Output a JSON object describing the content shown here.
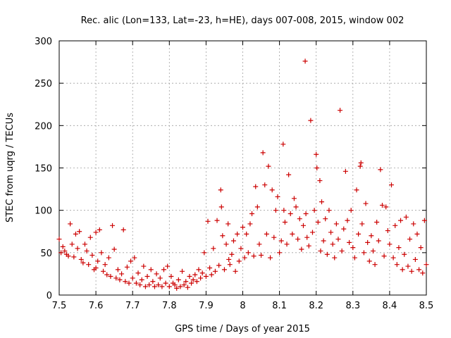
{
  "chart_data": {
    "type": "scatter",
    "title": "Rec. alic (Lon=133, Lat=-23, h=HE), days 007-008, 2015, window 002",
    "xlabel": "GPS time / Days of year 2015",
    "ylabel": "STEC from uqrg / TECUs",
    "xlim": [
      7.5,
      8.5
    ],
    "ylim": [
      0,
      300
    ],
    "x_ticks": [
      "7.5",
      "7.6",
      "7.7",
      "7.8",
      "7.9",
      "8",
      "8.1",
      "8.2",
      "8.3",
      "8.4",
      "8.5"
    ],
    "y_ticks": [
      "0",
      "50",
      "100",
      "150",
      "200",
      "250",
      "300"
    ],
    "grid": true,
    "marker": "+",
    "color": "#cc0000",
    "series": [
      {
        "name": "STEC",
        "points": [
          [
            7.5,
            66
          ],
          [
            7.505,
            50
          ],
          [
            7.51,
            57
          ],
          [
            7.515,
            52
          ],
          [
            7.52,
            48
          ],
          [
            7.525,
            46
          ],
          [
            7.53,
            84
          ],
          [
            7.535,
            60
          ],
          [
            7.54,
            45
          ],
          [
            7.545,
            72
          ],
          [
            7.55,
            55
          ],
          [
            7.555,
            75
          ],
          [
            7.56,
            42
          ],
          [
            7.565,
            38
          ],
          [
            7.57,
            60
          ],
          [
            7.575,
            52
          ],
          [
            7.58,
            36
          ],
          [
            7.585,
            68
          ],
          [
            7.59,
            47
          ],
          [
            7.595,
            30
          ],
          [
            7.6,
            74
          ],
          [
            7.6,
            32
          ],
          [
            7.605,
            40
          ],
          [
            7.61,
            77
          ],
          [
            7.615,
            50
          ],
          [
            7.62,
            28
          ],
          [
            7.625,
            36
          ],
          [
            7.63,
            24
          ],
          [
            7.635,
            44
          ],
          [
            7.64,
            22
          ],
          [
            7.645,
            82
          ],
          [
            7.65,
            54
          ],
          [
            7.655,
            20
          ],
          [
            7.66,
            30
          ],
          [
            7.665,
            18
          ],
          [
            7.67,
            25
          ],
          [
            7.675,
            77
          ],
          [
            7.68,
            16
          ],
          [
            7.685,
            33
          ],
          [
            7.69,
            14
          ],
          [
            7.695,
            40
          ],
          [
            7.7,
            20
          ],
          [
            7.705,
            44
          ],
          [
            7.71,
            14
          ],
          [
            7.715,
            26
          ],
          [
            7.72,
            12
          ],
          [
            7.725,
            18
          ],
          [
            7.73,
            34
          ],
          [
            7.735,
            10
          ],
          [
            7.74,
            22
          ],
          [
            7.745,
            12
          ],
          [
            7.75,
            30
          ],
          [
            7.755,
            16
          ],
          [
            7.76,
            10
          ],
          [
            7.765,
            25
          ],
          [
            7.77,
            12
          ],
          [
            7.775,
            20
          ],
          [
            7.78,
            10
          ],
          [
            7.785,
            30
          ],
          [
            7.79,
            14
          ],
          [
            7.795,
            34
          ],
          [
            7.8,
            10
          ],
          [
            7.805,
            22
          ],
          [
            7.81,
            14
          ],
          [
            7.815,
            12
          ],
          [
            7.82,
            8
          ],
          [
            7.825,
            18
          ],
          [
            7.83,
            10
          ],
          [
            7.835,
            28
          ],
          [
            7.84,
            12
          ],
          [
            7.845,
            16
          ],
          [
            7.85,
            9
          ],
          [
            7.855,
            22
          ],
          [
            7.86,
            14
          ],
          [
            7.865,
            18
          ],
          [
            7.87,
            24
          ],
          [
            7.875,
            16
          ],
          [
            7.88,
            30
          ],
          [
            7.885,
            20
          ],
          [
            7.89,
            26
          ],
          [
            7.895,
            50
          ],
          [
            7.9,
            22
          ],
          [
            7.905,
            87
          ],
          [
            7.91,
            32
          ],
          [
            7.915,
            24
          ],
          [
            7.92,
            55
          ],
          [
            7.925,
            28
          ],
          [
            7.93,
            88
          ],
          [
            7.935,
            35
          ],
          [
            7.94,
            124
          ],
          [
            7.942,
            104
          ],
          [
            7.945,
            70
          ],
          [
            7.95,
            30
          ],
          [
            7.955,
            60
          ],
          [
            7.96,
            84
          ],
          [
            7.962,
            42
          ],
          [
            7.965,
            36
          ],
          [
            7.97,
            48
          ],
          [
            7.975,
            64
          ],
          [
            7.98,
            28
          ],
          [
            7.985,
            72
          ],
          [
            7.99,
            40
          ],
          [
            7.995,
            55
          ],
          [
            8.0,
            80
          ],
          [
            8.005,
            44
          ],
          [
            8.01,
            72
          ],
          [
            8.015,
            50
          ],
          [
            8.02,
            84
          ],
          [
            8.025,
            96
          ],
          [
            8.03,
            46
          ],
          [
            8.035,
            128
          ],
          [
            8.04,
            104
          ],
          [
            8.045,
            60
          ],
          [
            8.05,
            47
          ],
          [
            8.055,
            168
          ],
          [
            8.06,
            130
          ],
          [
            8.065,
            72
          ],
          [
            8.07,
            152
          ],
          [
            8.075,
            44
          ],
          [
            8.08,
            124
          ],
          [
            8.085,
            68
          ],
          [
            8.09,
            100
          ],
          [
            8.095,
            116
          ],
          [
            8.1,
            50
          ],
          [
            8.105,
            64
          ],
          [
            8.11,
            178
          ],
          [
            8.112,
            100
          ],
          [
            8.115,
            86
          ],
          [
            8.12,
            60
          ],
          [
            8.125,
            142
          ],
          [
            8.13,
            96
          ],
          [
            8.135,
            72
          ],
          [
            8.14,
            114
          ],
          [
            8.145,
            104
          ],
          [
            8.15,
            66
          ],
          [
            8.155,
            90
          ],
          [
            8.16,
            54
          ],
          [
            8.165,
            82
          ],
          [
            8.17,
            276
          ],
          [
            8.172,
            96
          ],
          [
            8.175,
            68
          ],
          [
            8.18,
            58
          ],
          [
            8.185,
            206
          ],
          [
            8.19,
            74
          ],
          [
            8.195,
            100
          ],
          [
            8.2,
            166
          ],
          [
            8.202,
            150
          ],
          [
            8.205,
            86
          ],
          [
            8.21,
            135
          ],
          [
            8.212,
            52
          ],
          [
            8.215,
            110
          ],
          [
            8.22,
            64
          ],
          [
            8.225,
            90
          ],
          [
            8.23,
            48
          ],
          [
            8.235,
            100
          ],
          [
            8.24,
            74
          ],
          [
            8.245,
            60
          ],
          [
            8.25,
            44
          ],
          [
            8.255,
            84
          ],
          [
            8.26,
            66
          ],
          [
            8.265,
            218
          ],
          [
            8.27,
            52
          ],
          [
            8.275,
            78
          ],
          [
            8.28,
            146
          ],
          [
            8.285,
            88
          ],
          [
            8.29,
            62
          ],
          [
            8.295,
            100
          ],
          [
            8.3,
            56
          ],
          [
            8.305,
            44
          ],
          [
            8.31,
            124
          ],
          [
            8.315,
            72
          ],
          [
            8.32,
            152
          ],
          [
            8.322,
            156
          ],
          [
            8.325,
            84
          ],
          [
            8.33,
            50
          ],
          [
            8.335,
            108
          ],
          [
            8.34,
            62
          ],
          [
            8.345,
            40
          ],
          [
            8.35,
            70
          ],
          [
            8.355,
            52
          ],
          [
            8.36,
            36
          ],
          [
            8.365,
            86
          ],
          [
            8.37,
            64
          ],
          [
            8.375,
            148
          ],
          [
            8.38,
            106
          ],
          [
            8.385,
            46
          ],
          [
            8.39,
            104
          ],
          [
            8.395,
            76
          ],
          [
            8.4,
            60
          ],
          [
            8.405,
            130
          ],
          [
            8.41,
            44
          ],
          [
            8.415,
            82
          ],
          [
            8.42,
            36
          ],
          [
            8.425,
            56
          ],
          [
            8.43,
            88
          ],
          [
            8.435,
            30
          ],
          [
            8.44,
            48
          ],
          [
            8.445,
            92
          ],
          [
            8.45,
            34
          ],
          [
            8.455,
            66
          ],
          [
            8.46,
            28
          ],
          [
            8.465,
            84
          ],
          [
            8.47,
            42
          ],
          [
            8.475,
            72
          ],
          [
            8.48,
            30
          ],
          [
            8.485,
            56
          ],
          [
            8.49,
            26
          ],
          [
            8.495,
            88
          ],
          [
            8.5,
            36
          ]
        ]
      }
    ]
  }
}
